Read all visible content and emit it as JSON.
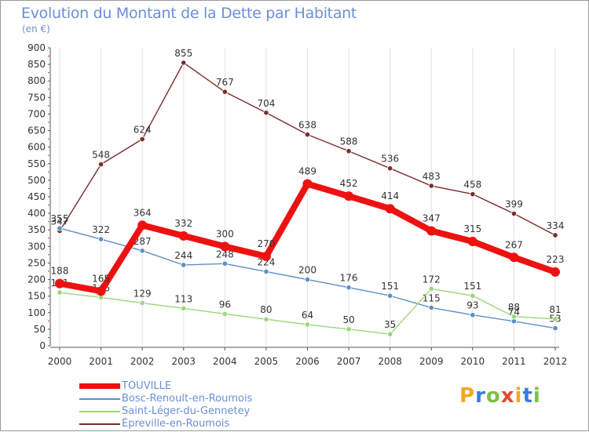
{
  "header": {
    "title": "Evolution du Montant de la Dette par Habitant",
    "subtitle": "(en €)"
  },
  "logo": {
    "text": "Proxiti",
    "colors": [
      "#f5a623",
      "#3b7dd8",
      "#7bc043",
      "#e8462f"
    ]
  },
  "chart_data": {
    "type": "line",
    "title": "Evolution du Montant de la Dette par Habitant",
    "subtitle": "(en €)",
    "xlabel": "",
    "ylabel": "",
    "ylim": [
      0,
      900
    ],
    "yticks": [
      0,
      50,
      100,
      150,
      200,
      250,
      300,
      350,
      400,
      450,
      500,
      550,
      600,
      650,
      700,
      750,
      800,
      850,
      900
    ],
    "grid": "vertical",
    "legend_position": "bottom-left",
    "categories": [
      "2000",
      "2001",
      "2002",
      "2003",
      "2004",
      "2005",
      "2006",
      "2007",
      "2008",
      "2009",
      "2010",
      "2011",
      "2012"
    ],
    "series": [
      {
        "name": "Épreville-en-Roumois",
        "color": "#7b2c2c",
        "values": [
          347,
          548,
          624,
          855,
          767,
          704,
          638,
          588,
          536,
          483,
          458,
          399,
          334
        ]
      },
      {
        "name": "Bosc-Renoult-en-Roumois",
        "color": "#5b8fc9",
        "values": [
          355,
          322,
          287,
          244,
          248,
          224,
          200,
          176,
          151,
          115,
          93,
          74,
          53
        ]
      },
      {
        "name": "Saint-Léger-du-Gennetey",
        "color": "#9bd67a",
        "values": [
          161,
          146,
          129,
          113,
          96,
          80,
          64,
          50,
          35,
          172,
          151,
          88,
          81
        ]
      },
      {
        "name": "TOUVILLE",
        "color": "#ee1111",
        "values": [
          188,
          165,
          364,
          332,
          300,
          270,
          489,
          452,
          414,
          347,
          315,
          267,
          223
        ]
      }
    ],
    "legend_order": [
      "TOUVILLE",
      "Bosc-Renoult-en-Roumois",
      "Saint-Léger-du-Gennetey",
      "Épreville-en-Roumois"
    ]
  }
}
